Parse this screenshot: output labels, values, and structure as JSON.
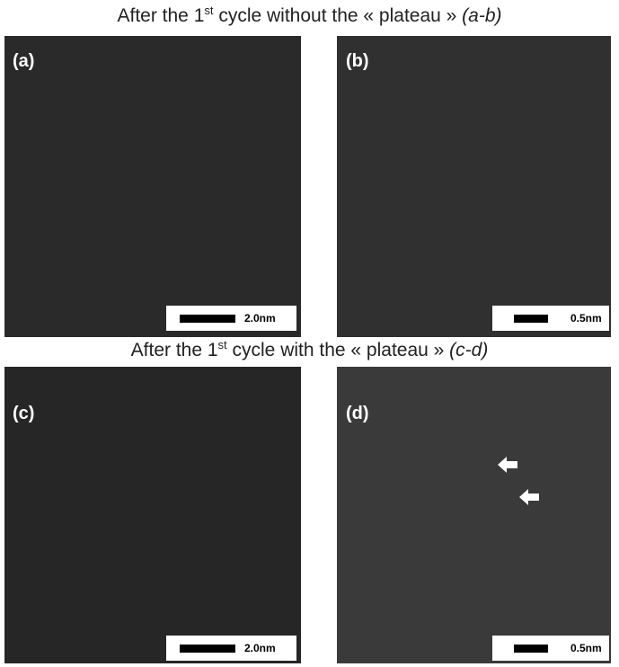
{
  "rows": [
    {
      "title": {
        "lead": "After the 1",
        "sup": "st",
        "rest": " cycle without the « plateau » ",
        "italic": "(a-b)"
      },
      "panels": [
        {
          "label": "(a)",
          "scale": "2.0nm"
        },
        {
          "label": "(b)",
          "scale": "0.5nm"
        }
      ]
    },
    {
      "title": {
        "lead": "After the 1",
        "sup": "st",
        "rest": "cycle with the « plateau » ",
        "italic": "(c-d)"
      },
      "panels": [
        {
          "label": "(c)",
          "scale": "2.0nm"
        },
        {
          "label": "(d)",
          "scale": "0.5nm"
        }
      ]
    }
  ]
}
